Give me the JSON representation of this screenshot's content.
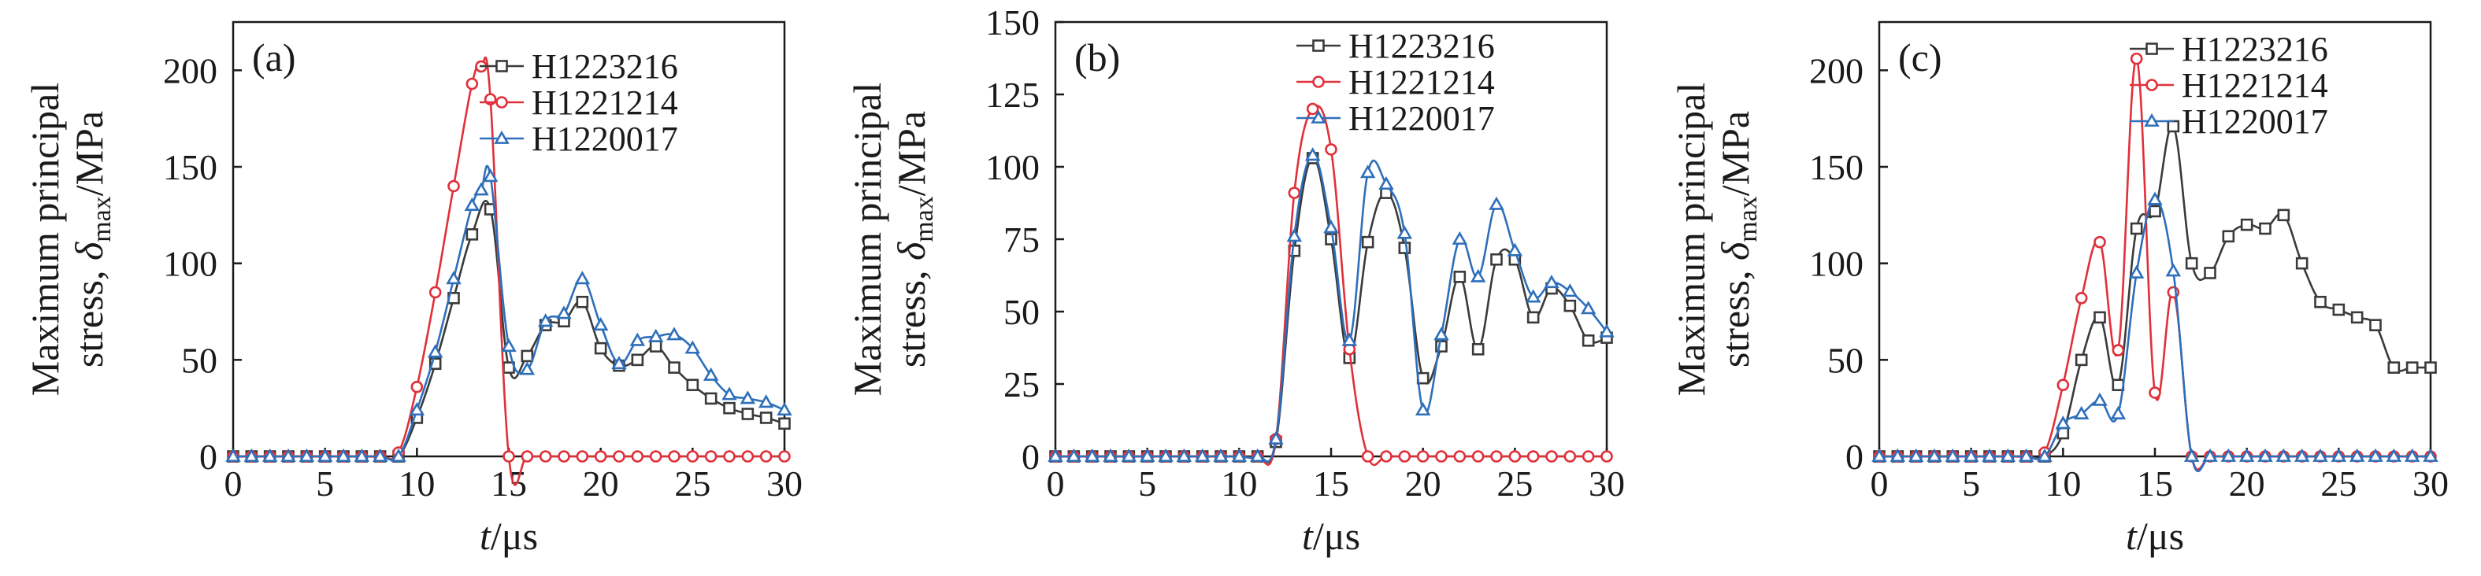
{
  "colors": {
    "H1223216": "#3a3a3a",
    "H1221214": "#e0303a",
    "H1220017": "#2e6fba"
  },
  "chart_data": [
    {
      "type": "line",
      "panel": "(a)",
      "xlabel_italic": "t",
      "xlabel_unit": "/μs",
      "ylabel_line1": "Maximum principal",
      "ylabel_line2_prefix": "stress, ",
      "ylabel_symbol": "δ",
      "ylabel_sub": "max",
      "ylabel_unit": "/MPa",
      "xlim": [
        0,
        30
      ],
      "ylim": [
        0,
        225
      ],
      "xticks": [
        0,
        5,
        10,
        15,
        20,
        25,
        30
      ],
      "yticks": [
        0,
        50,
        100,
        150,
        200
      ],
      "legend_position": "top-right",
      "series": [
        {
          "name": "H1223216",
          "marker": "square",
          "x": [
            0,
            1,
            2,
            3,
            4,
            5,
            6,
            7,
            8,
            9,
            10,
            11,
            12,
            13,
            14,
            15,
            16,
            17,
            18,
            19,
            20,
            21,
            22,
            23,
            24,
            25,
            26,
            27,
            28,
            29,
            30
          ],
          "y": [
            0,
            0,
            0,
            0,
            0,
            0,
            0,
            0,
            0,
            0,
            20,
            48,
            82,
            115,
            128,
            46,
            52,
            68,
            70,
            80,
            56,
            47,
            50,
            57,
            46,
            37,
            30,
            25,
            22,
            20,
            17
          ]
        },
        {
          "name": "H1221214",
          "marker": "circle",
          "x": [
            0,
            1,
            2,
            3,
            4,
            5,
            6,
            7,
            8,
            9,
            10,
            11,
            12,
            13,
            13.5,
            14,
            15,
            16,
            17,
            18,
            19,
            20,
            21,
            22,
            23,
            24,
            25,
            26,
            27,
            28,
            29,
            30
          ],
          "y": [
            0,
            0,
            0,
            0,
            0,
            0,
            0,
            0,
            0,
            2,
            36,
            85,
            140,
            193,
            202,
            185,
            0,
            0,
            0,
            0,
            0,
            0,
            0,
            0,
            0,
            0,
            0,
            0,
            0,
            0,
            0,
            0
          ]
        },
        {
          "name": "H1220017",
          "marker": "triangle",
          "x": [
            0,
            1,
            2,
            3,
            4,
            5,
            6,
            7,
            8,
            9,
            10,
            11,
            12,
            13,
            13.5,
            14,
            15,
            16,
            17,
            18,
            19,
            20,
            21,
            22,
            23,
            24,
            25,
            26,
            27,
            28,
            29,
            30
          ],
          "y": [
            0,
            0,
            0,
            0,
            0,
            0,
            0,
            0,
            0,
            0,
            24,
            54,
            92,
            130,
            138,
            145,
            57,
            45,
            70,
            74,
            92,
            68,
            48,
            60,
            62,
            63,
            56,
            42,
            32,
            30,
            28,
            24
          ]
        }
      ]
    },
    {
      "type": "line",
      "panel": "(b)",
      "xlabel_italic": "t",
      "xlabel_unit": "/μs",
      "ylabel_line1": "Maximum principal",
      "ylabel_line2_prefix": "stress, ",
      "ylabel_symbol": "δ",
      "ylabel_sub": "max",
      "ylabel_unit": "/MPa",
      "xlim": [
        0,
        30
      ],
      "ylim": [
        0,
        150
      ],
      "xticks": [
        0,
        5,
        10,
        15,
        20,
        25,
        30
      ],
      "yticks": [
        0,
        25,
        50,
        75,
        100,
        125,
        150
      ],
      "legend_position": "top-right",
      "series": [
        {
          "name": "H1223216",
          "marker": "square",
          "x": [
            0,
            1,
            2,
            3,
            4,
            5,
            6,
            7,
            8,
            9,
            10,
            11,
            12,
            13,
            14,
            15,
            16,
            17,
            18,
            19,
            20,
            21,
            22,
            23,
            24,
            25,
            26,
            27,
            28,
            29,
            30
          ],
          "y": [
            0,
            0,
            0,
            0,
            0,
            0,
            0,
            0,
            0,
            0,
            0,
            0,
            5,
            71,
            103,
            75,
            34,
            74,
            91,
            72,
            27,
            38,
            62,
            37,
            68,
            68,
            48,
            58,
            52,
            40,
            41
          ]
        },
        {
          "name": "H1221214",
          "marker": "circle",
          "x": [
            0,
            1,
            2,
            3,
            4,
            5,
            6,
            7,
            8,
            9,
            10,
            11,
            12,
            13,
            14,
            15,
            16,
            17,
            18,
            19,
            20,
            21,
            22,
            23,
            24,
            25,
            26,
            27,
            28,
            29,
            30
          ],
          "y": [
            0,
            0,
            0,
            0,
            0,
            0,
            0,
            0,
            0,
            0,
            0,
            0,
            6,
            91,
            120,
            106,
            37,
            0,
            0,
            0,
            0,
            0,
            0,
            0,
            0,
            0,
            0,
            0,
            0,
            0,
            0
          ]
        },
        {
          "name": "H1220017",
          "marker": "triangle",
          "x": [
            0,
            1,
            2,
            3,
            4,
            5,
            6,
            7,
            8,
            9,
            10,
            11,
            12,
            13,
            14,
            15,
            16,
            17,
            18,
            19,
            20,
            21,
            22,
            23,
            24,
            25,
            26,
            27,
            28,
            29,
            30
          ],
          "y": [
            0,
            0,
            0,
            0,
            0,
            0,
            0,
            0,
            0,
            0,
            0,
            0,
            6,
            76,
            104,
            79,
            40,
            98,
            94,
            77,
            16,
            42,
            75,
            62,
            87,
            71,
            55,
            60,
            57,
            51,
            43
          ]
        }
      ]
    },
    {
      "type": "line",
      "panel": "(c)",
      "xlabel_italic": "t",
      "xlabel_unit": "/μs",
      "ylabel_line1": "Maximum principal",
      "ylabel_line2_prefix": "stress, ",
      "ylabel_symbol": "δ",
      "ylabel_sub": "max",
      "ylabel_unit": "/MPa",
      "xlim": [
        0,
        30
      ],
      "ylim": [
        0,
        225
      ],
      "xticks": [
        0,
        5,
        10,
        15,
        20,
        25,
        30
      ],
      "yticks": [
        0,
        50,
        100,
        150,
        200
      ],
      "legend_position": "top-right",
      "series": [
        {
          "name": "H1223216",
          "marker": "square",
          "x": [
            0,
            1,
            2,
            3,
            4,
            5,
            6,
            7,
            8,
            9,
            10,
            11,
            12,
            13,
            14,
            15,
            16,
            17,
            18,
            19,
            20,
            21,
            22,
            23,
            24,
            25,
            26,
            27,
            28,
            29,
            30
          ],
          "y": [
            0,
            0,
            0,
            0,
            0,
            0,
            0,
            0,
            0,
            0,
            12,
            50,
            72,
            37,
            118,
            127,
            171,
            100,
            95,
            114,
            120,
            118,
            125,
            100,
            80,
            76,
            72,
            68,
            46,
            46,
            46
          ]
        },
        {
          "name": "H1221214",
          "marker": "circle",
          "x": [
            0,
            1,
            2,
            3,
            4,
            5,
            6,
            7,
            8,
            9,
            10,
            11,
            12,
            13,
            14,
            15,
            16,
            17,
            18,
            19,
            20,
            21,
            22,
            23,
            24,
            25,
            26,
            27,
            28,
            29,
            30
          ],
          "y": [
            0,
            0,
            0,
            0,
            0,
            0,
            0,
            0,
            0,
            2,
            37,
            82,
            111,
            55,
            206,
            33,
            85,
            0,
            0,
            0,
            0,
            0,
            0,
            0,
            0,
            0,
            0,
            0,
            0,
            0,
            0
          ]
        },
        {
          "name": "H1220017",
          "marker": "triangle",
          "x": [
            0,
            1,
            2,
            3,
            4,
            5,
            6,
            7,
            8,
            9,
            10,
            11,
            12,
            13,
            14,
            15,
            16,
            17,
            18,
            19,
            20,
            21,
            22,
            23,
            24,
            25,
            26,
            27,
            28,
            29,
            30
          ],
          "y": [
            0,
            0,
            0,
            0,
            0,
            0,
            0,
            0,
            0,
            0,
            17,
            22,
            29,
            22,
            95,
            133,
            96,
            0,
            0,
            0,
            0,
            0,
            0,
            0,
            0,
            0,
            0,
            0,
            0,
            0,
            0
          ]
        }
      ]
    }
  ]
}
